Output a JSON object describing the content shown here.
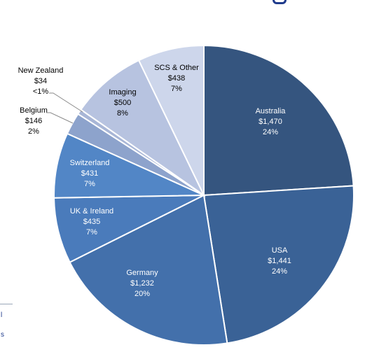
{
  "chart_data": {
    "type": "pie",
    "slices": [
      {
        "name": "Australia",
        "value": 1470,
        "value_label": "$1,470",
        "pct": "24%",
        "color": "#35557f",
        "text_color": "#ffffff"
      },
      {
        "name": "USA",
        "value": 1441,
        "value_label": "$1,441",
        "pct": "24%",
        "color": "#3a6296",
        "text_color": "#ffffff"
      },
      {
        "name": "Germany",
        "value": 1232,
        "value_label": "$1,232",
        "pct": "20%",
        "color": "#4370ab",
        "text_color": "#ffffff"
      },
      {
        "name": "UK & Ireland",
        "value": 435,
        "value_label": "$435",
        "pct": "7%",
        "color": "#4a7bbb",
        "text_color": "#ffffff"
      },
      {
        "name": "Switzerland",
        "value": 431,
        "value_label": "$431",
        "pct": "7%",
        "color": "#5286c6",
        "text_color": "#ffffff"
      },
      {
        "name": "Belgium",
        "value": 146,
        "value_label": "$146",
        "pct": "2%",
        "color": "#8da3cc",
        "text_color": "#000000"
      },
      {
        "name": "New Zealand",
        "value": 34,
        "value_label": "$34",
        "pct": "<1%",
        "color": "#a8b6d6",
        "text_color": "#000000"
      },
      {
        "name": "Imaging",
        "value": 500,
        "value_label": "$500",
        "pct": "8%",
        "color": "#b7c3e0",
        "text_color": "#000000"
      },
      {
        "name": "SCS & Other",
        "value": 438,
        "value_label": "$438",
        "pct": "7%",
        "color": "#cdd6eb",
        "text_color": "#000000"
      }
    ]
  },
  "legend_fragment": {
    "line_1": "l",
    "line_2": "s"
  }
}
